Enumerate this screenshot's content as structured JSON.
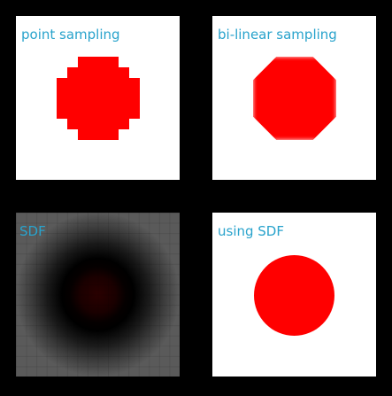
{
  "panels": {
    "point_sampling": {
      "label": "point sampling"
    },
    "bilinear_sampling": {
      "label": "bi-linear sampling"
    },
    "sdf": {
      "label": "SDF"
    },
    "using_sdf": {
      "label": "using SDF"
    }
  },
  "colors": {
    "label": "#29a3cc",
    "shape": "#ff0000",
    "panel_background": "#ffffff",
    "page_background": "#000000"
  }
}
